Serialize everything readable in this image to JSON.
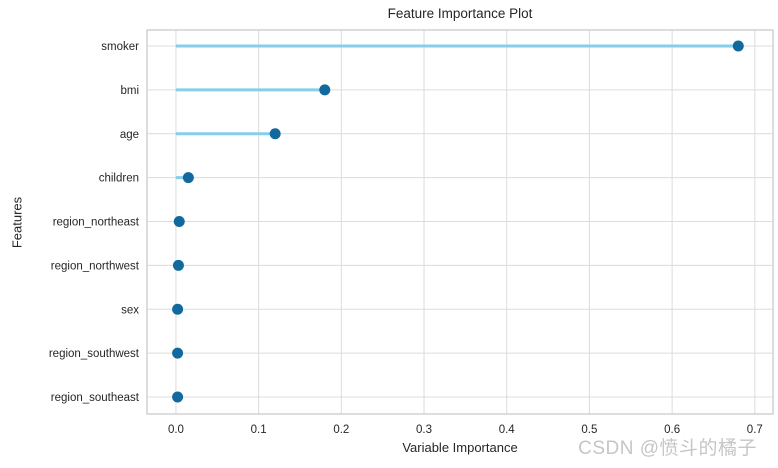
{
  "page": {
    "watermark": "CSDN @愤斗的橘子"
  },
  "chart_data": {
    "type": "scatter",
    "variant": "horizontal-lollipop",
    "title": "Feature Importance Plot",
    "xlabel": "Variable Importance",
    "ylabel": "Features",
    "categories": [
      "smoker",
      "bmi",
      "age",
      "children",
      "region_northeast",
      "region_northwest",
      "sex",
      "region_southwest",
      "region_southeast"
    ],
    "values": [
      0.68,
      0.18,
      0.12,
      0.015,
      0.004,
      0.003,
      0.002,
      0.002,
      0.002
    ],
    "xticks": [
      0.0,
      0.1,
      0.2,
      0.3,
      0.4,
      0.5,
      0.6,
      0.7
    ],
    "xtick_labels": [
      "0.0",
      "0.1",
      "0.2",
      "0.3",
      "0.4",
      "0.5",
      "0.6",
      "0.7"
    ],
    "xlim": [
      -0.035,
      0.722
    ],
    "grid": true,
    "legend": false,
    "colors": {
      "stem": "#87ceeb",
      "dot": "#11699e",
      "grid": "#dcdcdc",
      "spine": "#c6c6c6",
      "text": "#262626",
      "watermark": "#c6c6c6"
    }
  }
}
